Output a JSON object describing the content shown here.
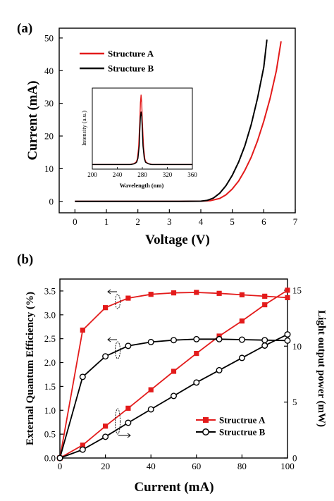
{
  "panels": {
    "a_label": "(a)",
    "b_label": "(b)"
  },
  "colors": {
    "red": "#e31b1b",
    "black": "#000000"
  },
  "chart_data": [
    {
      "type": "line",
      "panel": "(a)",
      "xlabel": "Voltage (V)",
      "ylabel": "Current (mA)",
      "xlim": [
        -0.5,
        7
      ],
      "ylim": [
        -3.5,
        53
      ],
      "xticks": [
        0,
        1,
        2,
        3,
        4,
        5,
        6,
        7
      ],
      "yticks": [
        0,
        10,
        20,
        30,
        40,
        50
      ],
      "legend_position": "top-left",
      "series": [
        {
          "name": "Structure A",
          "color": "#e31b1b",
          "x": [
            0,
            1,
            2,
            3,
            4,
            4.3,
            4.6,
            4.8,
            5.0,
            5.2,
            5.4,
            5.6,
            5.8,
            6.0,
            6.2,
            6.4,
            6.55
          ],
          "y": [
            0,
            0,
            0,
            0,
            0.05,
            0.2,
            0.9,
            2.0,
            3.8,
            6.2,
            9.5,
            13.5,
            18.5,
            24.5,
            31.5,
            40,
            49
          ]
        },
        {
          "name": "Structure B",
          "color": "#000000",
          "x": [
            0,
            1,
            2,
            3,
            4,
            4.2,
            4.4,
            4.6,
            4.8,
            5.0,
            5.2,
            5.4,
            5.6,
            5.8,
            6.0,
            6.1
          ],
          "y": [
            0,
            0,
            0,
            0,
            0.05,
            0.3,
            1.0,
            2.5,
            4.8,
            8.0,
            12.0,
            17.0,
            23.5,
            31.5,
            41,
            49.5
          ]
        }
      ],
      "inset": {
        "type": "line",
        "xlabel": "Wavelength (nm)",
        "ylabel": "Intensity (a.u.)",
        "xlim": [
          200,
          360
        ],
        "xticks": [
          200,
          240,
          280,
          320,
          360
        ],
        "series": [
          {
            "name": "Structure A",
            "color": "#e31b1b",
            "x": [
              200,
              260,
              266,
              270,
              272,
              274,
              276,
              277,
              278,
              279,
              280,
              282,
              284,
              286,
              290,
              296,
              360
            ],
            "y": [
              0.06,
              0.06,
              0.07,
              0.09,
              0.13,
              0.28,
              0.62,
              0.86,
              0.96,
              0.86,
              0.62,
              0.28,
              0.13,
              0.09,
              0.07,
              0.06,
              0.06
            ]
          },
          {
            "name": "Structure B",
            "color": "#000000",
            "x": [
              200,
              262,
              268,
              271,
              273,
              275,
              276,
              277,
              278,
              279,
              280,
              281,
              283,
              285,
              289,
              294,
              360
            ],
            "y": [
              0.06,
              0.06,
              0.07,
              0.09,
              0.14,
              0.3,
              0.5,
              0.68,
              0.74,
              0.68,
              0.5,
              0.3,
              0.14,
              0.09,
              0.07,
              0.06,
              0.06
            ]
          }
        ]
      }
    },
    {
      "type": "line",
      "panel": "(b)",
      "xlabel": "Current (mA)",
      "ylabel": "External Quantum Efficiency (%)",
      "y2label": "Light output power (mW)",
      "xlim": [
        0,
        100
      ],
      "ylim": [
        0,
        3.75
      ],
      "y2lim": [
        0,
        16
      ],
      "xticks": [
        0,
        20,
        40,
        60,
        80,
        100
      ],
      "yticks": [
        0.0,
        0.5,
        1.0,
        1.5,
        2.0,
        2.5,
        3.0,
        3.5
      ],
      "y2ticks": [
        0,
        5,
        10,
        15
      ],
      "legend_position": "bottom-right",
      "series": [
        {
          "name": "Structrue A",
          "axis": "left",
          "color": "#e31b1b",
          "marker": "filled-square",
          "x": [
            0,
            10,
            20,
            30,
            40,
            50,
            60,
            70,
            80,
            90,
            100
          ],
          "y": [
            0.0,
            2.68,
            3.15,
            3.35,
            3.43,
            3.46,
            3.47,
            3.45,
            3.42,
            3.39,
            3.36
          ]
        },
        {
          "name": "Structrue A",
          "axis": "right",
          "color": "#e31b1b",
          "marker": "filled-square",
          "x": [
            0,
            10,
            20,
            30,
            40,
            50,
            60,
            70,
            80,
            90,
            100
          ],
          "y": [
            0.0,
            1.15,
            2.85,
            4.45,
            6.1,
            7.75,
            9.35,
            10.9,
            12.25,
            13.7,
            15.0
          ]
        },
        {
          "name": "Structrue B",
          "axis": "left",
          "color": "#000000",
          "marker": "open-circle",
          "x": [
            0,
            10,
            20,
            30,
            40,
            50,
            60,
            70,
            80,
            90,
            100
          ],
          "y": [
            0.0,
            1.7,
            2.13,
            2.35,
            2.43,
            2.47,
            2.49,
            2.49,
            2.48,
            2.47,
            2.46
          ]
        },
        {
          "name": "Structrue B",
          "axis": "right",
          "color": "#000000",
          "marker": "open-circle",
          "x": [
            0,
            10,
            20,
            30,
            40,
            50,
            60,
            70,
            80,
            90,
            100
          ],
          "y": [
            0.0,
            0.75,
            1.9,
            3.15,
            4.35,
            5.55,
            6.75,
            7.85,
            8.95,
            10.05,
            11.05
          ]
        }
      ]
    }
  ]
}
